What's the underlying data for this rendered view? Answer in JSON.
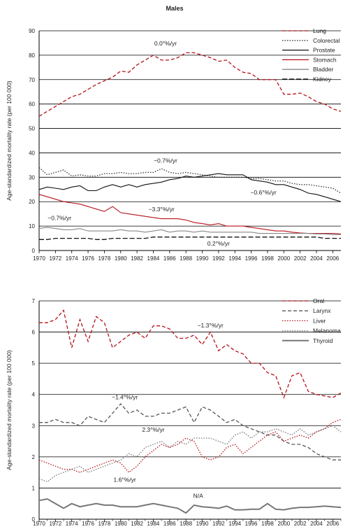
{
  "chart_data": [
    {
      "type": "line",
      "title": "Males",
      "ylabel": "Age-standardized mortality rate (per 100 000)",
      "xlabel": "",
      "xlim": [
        1970,
        2007
      ],
      "ylim": [
        0,
        90
      ],
      "yticks": [
        0,
        10,
        20,
        30,
        40,
        50,
        60,
        70,
        80,
        90
      ],
      "xticks": [
        1970,
        1972,
        1974,
        1976,
        1978,
        1980,
        1982,
        1984,
        1986,
        1988,
        1990,
        1992,
        1994,
        1996,
        1998,
        2000,
        2002,
        2004,
        2006
      ],
      "grid": "horizontal",
      "legend_position": "top-right",
      "series": [
        {
          "name": "Lung",
          "color": "#b5121b",
          "dash": "dashed",
          "x": [
            1970,
            1971,
            1972,
            1973,
            1974,
            1975,
            1976,
            1977,
            1978,
            1979,
            1980,
            1981,
            1982,
            1983,
            1984,
            1985,
            1986,
            1987,
            1988,
            1989,
            1990,
            1991,
            1992,
            1993,
            1994,
            1995,
            1996,
            1997,
            1998,
            1999,
            2000,
            2001,
            2002,
            2003,
            2004,
            2005,
            2006,
            2007
          ],
          "y": [
            55,
            57,
            59,
            61,
            63,
            64,
            66,
            68,
            69.5,
            71,
            73.5,
            73,
            76,
            78,
            80,
            78,
            78,
            79,
            81,
            81,
            80,
            79,
            77.5,
            78,
            75,
            73,
            72.5,
            70,
            70,
            70,
            64,
            64,
            64.5,
            63,
            61,
            60,
            58,
            57
          ]
        },
        {
          "name": "Colorectal",
          "color": "#333333",
          "dash": "dotted",
          "x": [
            1970,
            1971,
            1972,
            1973,
            1974,
            1975,
            1976,
            1977,
            1978,
            1979,
            1980,
            1981,
            1982,
            1983,
            1984,
            1985,
            1986,
            1987,
            1988,
            1989,
            1990,
            1991,
            1992,
            1993,
            1994,
            1995,
            1996,
            1997,
            1998,
            1999,
            2000,
            2001,
            2002,
            2003,
            2004,
            2005,
            2006,
            2007
          ],
          "y": [
            34,
            31,
            32,
            33,
            30.5,
            31,
            30.5,
            30.5,
            31.5,
            31.5,
            32,
            31.5,
            31.5,
            32,
            32,
            33.5,
            32,
            31.5,
            32,
            31.5,
            31,
            30.5,
            30,
            30,
            30,
            30,
            29.5,
            29.5,
            29,
            28.5,
            28.5,
            27.5,
            27,
            27,
            26.5,
            26,
            25.5,
            23.5
          ]
        },
        {
          "name": "Prostate",
          "color": "#111111",
          "dash": "solid",
          "x": [
            1970,
            1971,
            1972,
            1973,
            1974,
            1975,
            1976,
            1977,
            1978,
            1979,
            1980,
            1981,
            1982,
            1983,
            1984,
            1985,
            1986,
            1987,
            1988,
            1989,
            1990,
            1991,
            1992,
            1993,
            1994,
            1995,
            1996,
            1997,
            1998,
            1999,
            2000,
            2001,
            2002,
            2003,
            2004,
            2005,
            2006,
            2007
          ],
          "y": [
            25,
            26,
            25.5,
            25,
            26,
            26.5,
            24.5,
            24.5,
            26,
            27,
            26,
            27,
            26,
            27,
            27.5,
            28,
            29,
            29.5,
            30.5,
            30,
            30.5,
            31,
            31.5,
            31,
            31,
            31,
            29,
            28.5,
            28,
            27,
            27,
            26,
            25,
            23.5,
            23,
            22,
            21,
            20
          ]
        },
        {
          "name": "Stomach",
          "color": "#b5121b",
          "dash": "solid",
          "x": [
            1970,
            1971,
            1972,
            1973,
            1974,
            1975,
            1976,
            1977,
            1978,
            1979,
            1980,
            1981,
            1982,
            1983,
            1984,
            1985,
            1986,
            1987,
            1988,
            1989,
            1990,
            1991,
            1992,
            1993,
            1994,
            1995,
            1996,
            1997,
            1998,
            1999,
            2000,
            2001,
            2002,
            2003,
            2004,
            2005,
            2006,
            2007
          ],
          "y": [
            23,
            22,
            21,
            20,
            19.5,
            19,
            18,
            17,
            16,
            18,
            15.5,
            15,
            14.5,
            14,
            13.5,
            13,
            13,
            13,
            12.5,
            11.5,
            11,
            10.5,
            11,
            10,
            10,
            10,
            9.5,
            9,
            8.5,
            8,
            8,
            7.5,
            7.2,
            7,
            7,
            7,
            7,
            6.8
          ]
        },
        {
          "name": "Bladder",
          "color": "#888888",
          "dash": "solid",
          "x": [
            1970,
            1971,
            1972,
            1973,
            1974,
            1975,
            1976,
            1977,
            1978,
            1979,
            1980,
            1981,
            1982,
            1983,
            1984,
            1985,
            1986,
            1987,
            1988,
            1989,
            1990,
            1991,
            1992,
            1993,
            1994,
            1995,
            1996,
            1997,
            1998,
            1999,
            2000,
            2001,
            2002,
            2003,
            2004,
            2005,
            2006,
            2007
          ],
          "y": [
            9,
            9.5,
            9,
            8.5,
            8.5,
            9,
            8,
            8,
            8,
            8,
            8.5,
            8,
            8,
            7.5,
            8,
            8.5,
            7.5,
            8,
            8,
            7.5,
            8,
            7.5,
            7.5,
            7.5,
            7.5,
            7.5,
            7.5,
            7,
            7,
            7,
            7,
            7,
            7,
            7,
            6.8,
            6.8,
            6.5,
            6.5
          ]
        },
        {
          "name": "Kidney",
          "color": "#111111",
          "dash": "longdash",
          "x": [
            1970,
            1971,
            1972,
            1973,
            1974,
            1975,
            1976,
            1977,
            1978,
            1979,
            1980,
            1981,
            1982,
            1983,
            1984,
            1985,
            1986,
            1987,
            1988,
            1989,
            1990,
            1991,
            1992,
            1993,
            1994,
            1995,
            1996,
            1997,
            1998,
            1999,
            2000,
            2001,
            2002,
            2003,
            2004,
            2005,
            2006,
            2007
          ],
          "y": [
            4.5,
            4.5,
            5,
            5,
            5,
            5,
            5,
            4.5,
            4.5,
            5,
            5,
            5,
            5,
            5,
            5.5,
            5.5,
            5.5,
            5.5,
            5.5,
            5.5,
            5.5,
            5.5,
            5.5,
            5.5,
            5.5,
            5.5,
            5.5,
            5.5,
            5.5,
            5.5,
            5.5,
            5.5,
            5.5,
            5.5,
            5.5,
            5,
            5,
            5
          ]
        }
      ],
      "annotations": [
        {
          "text": "0.0°%/yr",
          "x": 1985.5,
          "y": 84
        },
        {
          "text": "−0.7%/yr",
          "x": 1985.5,
          "y": 36
        },
        {
          "text": "−0.6°%/yr",
          "x": 1997.5,
          "y": 23
        },
        {
          "text": "−3.3°%/yr",
          "x": 1985,
          "y": 16
        },
        {
          "text": "−0.7%/yr",
          "x": 1972.5,
          "y": 12.5
        },
        {
          "text": "0.2°%/yr",
          "x": 1992,
          "y": 2
        }
      ]
    },
    {
      "type": "line",
      "title": "",
      "ylabel": "Age-standardized mortality rate (per 100 000)",
      "xlabel": "",
      "xlim": [
        1970,
        2007
      ],
      "ylim": [
        0,
        7
      ],
      "yticks": [
        0,
        1,
        2,
        3,
        4,
        5,
        6,
        7
      ],
      "xticks": [
        1970,
        1972,
        1974,
        1976,
        1978,
        1980,
        1982,
        1984,
        1986,
        1988,
        1990,
        1992,
        1994,
        1996,
        1998,
        2000,
        2002,
        2004,
        2006
      ],
      "xticks_minor": [
        1971,
        1973,
        1975,
        1977,
        1979,
        1981,
        1983,
        1985,
        1987,
        1989,
        1991,
        1993,
        1995,
        1997,
        1999,
        2001,
        2003,
        2005,
        2007
      ],
      "grid": "horizontal",
      "legend_position": "top-right",
      "series": [
        {
          "name": "Oral",
          "color": "#b5121b",
          "dash": "dashed",
          "x": [
            1970,
            1971,
            1972,
            1973,
            1974,
            1975,
            1976,
            1977,
            1978,
            1979,
            1980,
            1981,
            1982,
            1983,
            1984,
            1985,
            1986,
            1987,
            1988,
            1989,
            1990,
            1991,
            1992,
            1993,
            1994,
            1995,
            1996,
            1997,
            1998,
            1999,
            2000,
            2001,
            2002,
            2003,
            2004,
            2005,
            2006,
            2007
          ],
          "y": [
            6.3,
            6.3,
            6.4,
            6.7,
            5.5,
            6.4,
            5.7,
            6.5,
            6.3,
            5.5,
            5.7,
            5.9,
            6.0,
            5.8,
            6.2,
            6.2,
            6.1,
            5.8,
            5.8,
            5.9,
            5.6,
            6.0,
            5.4,
            5.6,
            5.4,
            5.3,
            5.0,
            5.0,
            4.7,
            4.6,
            3.9,
            4.6,
            4.7,
            4.1,
            4.0,
            3.95,
            3.9,
            4.05
          ]
        },
        {
          "name": "Larynx",
          "color": "#555555",
          "dash": "dashed",
          "x": [
            1970,
            1971,
            1972,
            1973,
            1974,
            1975,
            1976,
            1977,
            1978,
            1979,
            1980,
            1981,
            1982,
            1983,
            1984,
            1985,
            1986,
            1987,
            1988,
            1989,
            1990,
            1991,
            1992,
            1993,
            1994,
            1995,
            1996,
            1997,
            1998,
            1999,
            2000,
            2001,
            2002,
            2003,
            2004,
            2005,
            2006,
            2007
          ],
          "y": [
            3.1,
            3.1,
            3.2,
            3.1,
            3.1,
            3.0,
            3.3,
            3.2,
            3.1,
            3.4,
            3.7,
            3.4,
            3.5,
            3.3,
            3.3,
            3.4,
            3.4,
            3.5,
            3.6,
            3.1,
            3.6,
            3.5,
            3.3,
            3.1,
            3.2,
            3.0,
            2.9,
            2.8,
            2.7,
            2.7,
            2.5,
            2.4,
            2.4,
            2.3,
            2.1,
            2.0,
            1.9,
            1.9
          ]
        },
        {
          "name": "Liver",
          "color": "#b5121b",
          "dash": "dotted",
          "x": [
            1970,
            1971,
            1972,
            1973,
            1974,
            1975,
            1976,
            1977,
            1978,
            1979,
            1980,
            1981,
            1982,
            1983,
            1984,
            1985,
            1986,
            1987,
            1988,
            1989,
            1990,
            1991,
            1992,
            1993,
            1994,
            1995,
            1996,
            1997,
            1998,
            1999,
            2000,
            2001,
            2002,
            2003,
            2004,
            2005,
            2006,
            2007
          ],
          "y": [
            1.9,
            1.8,
            1.7,
            1.6,
            1.6,
            1.5,
            1.6,
            1.7,
            1.8,
            1.9,
            1.8,
            1.5,
            1.7,
            2.0,
            2.2,
            2.4,
            2.3,
            2.4,
            2.6,
            2.5,
            2.0,
            1.9,
            2.0,
            2.3,
            2.4,
            2.1,
            2.3,
            2.5,
            2.7,
            2.8,
            2.5,
            2.6,
            2.7,
            2.6,
            2.8,
            2.9,
            3.1,
            3.2
          ]
        },
        {
          "name": "Melanoma",
          "color": "#777777",
          "dash": "dotted",
          "x": [
            1970,
            1971,
            1972,
            1973,
            1974,
            1975,
            1976,
            1977,
            1978,
            1979,
            1980,
            1981,
            1982,
            1983,
            1984,
            1985,
            1986,
            1987,
            1988,
            1989,
            1990,
            1991,
            1992,
            1993,
            1994,
            1995,
            1996,
            1997,
            1998,
            1999,
            2000,
            2001,
            2002,
            2003,
            2004,
            2005,
            2006,
            2007
          ],
          "y": [
            1.3,
            1.2,
            1.4,
            1.5,
            1.6,
            1.7,
            1.5,
            1.6,
            1.7,
            1.8,
            1.9,
            2.1,
            2.0,
            2.3,
            2.4,
            2.5,
            2.3,
            2.5,
            2.4,
            2.6,
            2.6,
            2.6,
            2.5,
            2.4,
            2.7,
            2.8,
            2.6,
            2.8,
            2.8,
            2.9,
            2.8,
            2.7,
            2.9,
            2.7,
            2.8,
            2.9,
            3.0,
            2.8
          ]
        },
        {
          "name": "Thyroid",
          "color": "#777777",
          "dash": "solid",
          "x": [
            1970,
            1971,
            1972,
            1973,
            1974,
            1975,
            1976,
            1977,
            1978,
            1979,
            1980,
            1981,
            1982,
            1983,
            1984,
            1985,
            1986,
            1987,
            1988,
            1989,
            1990,
            1991,
            1992,
            1993,
            1994,
            1995,
            1996,
            1997,
            1998,
            1999,
            2000,
            2001,
            2002,
            2003,
            2004,
            2005,
            2006,
            2007
          ],
          "y": [
            0.6,
            0.65,
            0.5,
            0.35,
            0.5,
            0.4,
            0.45,
            0.5,
            0.45,
            0.45,
            0.4,
            0.4,
            0.4,
            0.45,
            0.5,
            0.45,
            0.4,
            0.35,
            0.2,
            0.45,
            0.4,
            0.38,
            0.35,
            0.42,
            0.3,
            0.3,
            0.32,
            0.32,
            0.5,
            0.32,
            0.3,
            0.35,
            0.38,
            0.38,
            0.4,
            0.42,
            0.4,
            0.38
          ]
        }
      ],
      "annotations": [
        {
          "text": "−1.3°%/yr",
          "x": 1991,
          "y": 6.15
        },
        {
          "text": "−1.4°%/yr",
          "x": 1980.5,
          "y": 3.85
        },
        {
          "text": "2.3°%/yr",
          "x": 1984,
          "y": 2.8
        },
        {
          "text": "1.6°%/yr",
          "x": 1980.5,
          "y": 1.2
        },
        {
          "text": "N/A",
          "x": 1989.5,
          "y": 0.68
        }
      ]
    }
  ]
}
